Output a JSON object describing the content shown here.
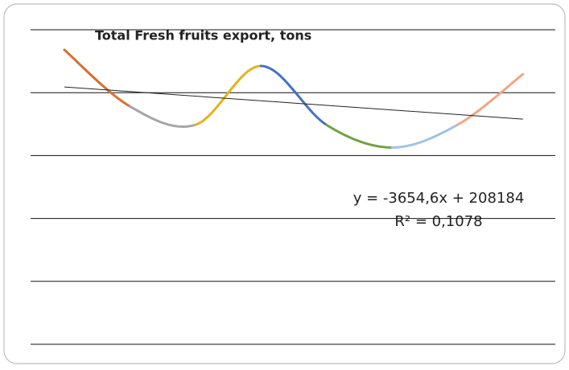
{
  "chart_data": {
    "type": "line",
    "title": "Total Fresh fruits export, tons",
    "categories": [
      null,
      null,
      null,
      null,
      null,
      null,
      null,
      null
    ],
    "values": [
      234000,
      189100,
      174400,
      221200,
      174400,
      156400,
      174400,
      214700
    ],
    "segment_colors": [
      "#d8702e",
      "#a5a5a5",
      "#e3b21c",
      "#4472c4",
      "#70a13f",
      "#9dc3e6",
      "#f4a582"
    ],
    "smooth": true,
    "ylim": [
      0,
      250000
    ],
    "yticks": [
      0,
      50000,
      100000,
      150000,
      200000,
      250000
    ],
    "grid": true,
    "trendline": {
      "type": "linear",
      "slope": -3654.6,
      "intercept": 208184,
      "color": "#222222"
    },
    "annotations": [
      "y = -3654,6x + 208184",
      "R² = 0,1078"
    ]
  }
}
